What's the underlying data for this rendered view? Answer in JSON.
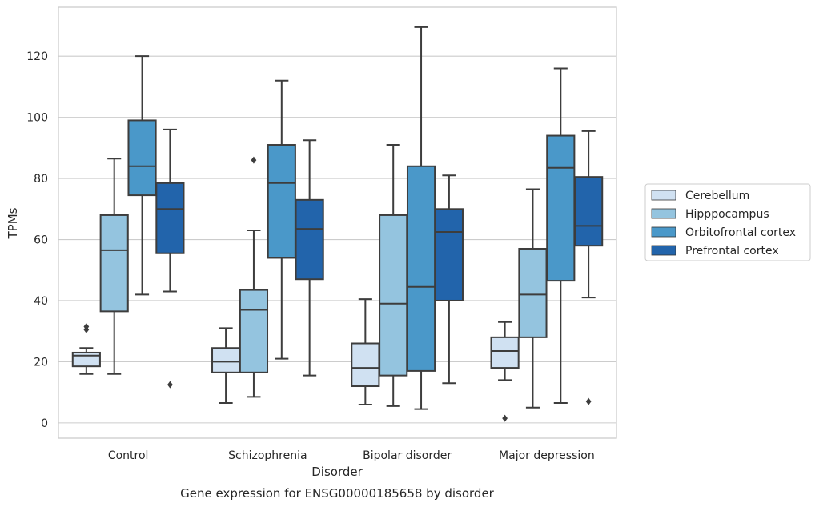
{
  "chart_data": {
    "type": "boxplot",
    "title": "Gene expression for ENSG00000185658 by disorder",
    "xlabel": "Disorder",
    "ylabel": "TPMs",
    "ylim": [
      -5,
      136
    ],
    "yticks": [
      0,
      20,
      40,
      60,
      80,
      100,
      120
    ],
    "grid": "horizontal",
    "legend_position": "right",
    "categories": [
      "Control",
      "Schizophrenia",
      "Bipolar disorder",
      "Major depression"
    ],
    "series": [
      {
        "name": "Cerebellum",
        "color": "#d0e1f2",
        "boxes": [
          {
            "whisker_low": 16,
            "q1": 18.5,
            "median": 22,
            "q3": 23,
            "whisker_high": 24.5,
            "outliers": [
              30.5,
              31.5
            ]
          },
          {
            "whisker_low": 6.5,
            "q1": 16.5,
            "median": 20,
            "q3": 24.5,
            "whisker_high": 31,
            "outliers": []
          },
          {
            "whisker_low": 6,
            "q1": 12,
            "median": 18,
            "q3": 26,
            "whisker_high": 40.5,
            "outliers": []
          },
          {
            "whisker_low": 14,
            "q1": 18,
            "median": 23.5,
            "q3": 28,
            "whisker_high": 33,
            "outliers": [
              1.5
            ]
          }
        ]
      },
      {
        "name": "Hipppocampus",
        "color": "#94c4df",
        "boxes": [
          {
            "whisker_low": 16,
            "q1": 36.5,
            "median": 56.5,
            "q3": 68,
            "whisker_high": 86.5,
            "outliers": []
          },
          {
            "whisker_low": 8.5,
            "q1": 16.5,
            "median": 37,
            "q3": 43.5,
            "whisker_high": 63,
            "outliers": [
              86
            ]
          },
          {
            "whisker_low": 5.5,
            "q1": 15.5,
            "median": 39,
            "q3": 68,
            "whisker_high": 91,
            "outliers": []
          },
          {
            "whisker_low": 5,
            "q1": 28,
            "median": 42,
            "q3": 57,
            "whisker_high": 76.5,
            "outliers": []
          }
        ]
      },
      {
        "name": "Orbitofrontal cortex",
        "color": "#4a98c9",
        "boxes": [
          {
            "whisker_low": 42,
            "q1": 74.5,
            "median": 84,
            "q3": 99,
            "whisker_high": 120,
            "outliers": []
          },
          {
            "whisker_low": 21,
            "q1": 54,
            "median": 78.5,
            "q3": 91,
            "whisker_high": 112,
            "outliers": []
          },
          {
            "whisker_low": 4.5,
            "q1": 17,
            "median": 44.5,
            "q3": 84,
            "whisker_high": 129.5,
            "outliers": []
          },
          {
            "whisker_low": 6.5,
            "q1": 46.5,
            "median": 83.5,
            "q3": 94,
            "whisker_high": 116,
            "outliers": []
          }
        ]
      },
      {
        "name": "Prefrontal cortex",
        "color": "#2264ab",
        "boxes": [
          {
            "whisker_low": 43,
            "q1": 55.5,
            "median": 70,
            "q3": 78.5,
            "whisker_high": 96,
            "outliers": [
              12.5
            ]
          },
          {
            "whisker_low": 15.5,
            "q1": 47,
            "median": 63.5,
            "q3": 73,
            "whisker_high": 92.5,
            "outliers": []
          },
          {
            "whisker_low": 13,
            "q1": 40,
            "median": 62.5,
            "q3": 70,
            "whisker_high": 81,
            "outliers": []
          },
          {
            "whisker_low": 41,
            "q1": 58,
            "median": 64.5,
            "q3": 80.5,
            "whisker_high": 95.5,
            "outliers": [
              7
            ]
          }
        ]
      }
    ]
  }
}
